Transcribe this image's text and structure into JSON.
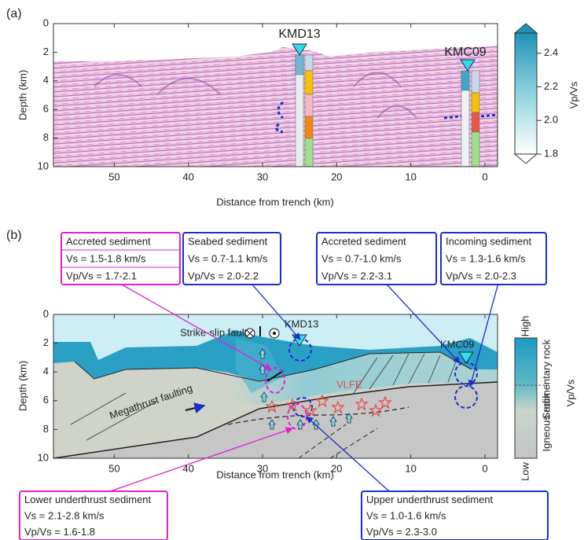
{
  "panel_a": {
    "label": "(a)",
    "xlabel": "Distance from trench (km)",
    "ylabel": "Depth (km)",
    "xlim": [
      58.2,
      -1.7
    ],
    "ylim": [
      0,
      10
    ],
    "xticks": [
      50,
      40,
      30,
      20,
      10,
      0
    ],
    "yticks": [
      0,
      2,
      4,
      6,
      8,
      10
    ],
    "sites": [
      "KMD13",
      "KMC09"
    ],
    "colorbar": {
      "label": "Vp/Vs",
      "lim": [
        1.8,
        2.52
      ],
      "ticks": [
        1.8,
        {
          "value": 2.0,
          "label": "2.0"
        },
        2.2,
        2.4
      ]
    }
  },
  "panel_b": {
    "label": "(b)",
    "xlabel": "Distance from trench (km)",
    "ylabel": "Depth (km)",
    "xlim": [
      58.2,
      -1.7
    ],
    "ylim": [
      0,
      10
    ],
    "xticks": [
      50,
      40,
      30,
      20,
      10,
      0
    ],
    "yticks": [
      0,
      2,
      4,
      6,
      8,
      10
    ],
    "sites": [
      "KMD13",
      "KMC09"
    ],
    "annotations": [
      "Strike-slip fault",
      "Megathrust faulting",
      "VLFE"
    ],
    "legend": {
      "label": "Vp/Vs",
      "high": "High",
      "low": "Low",
      "upper": "Sedimentary rock",
      "lower": "Igneous rock"
    },
    "boxes": [
      {
        "title": "Accreted sediment",
        "vs": "Vs = 1.5-1.8 km/s",
        "vpvs": "Vp/Vs = 1.7-2.1",
        "color": "#e020d0"
      },
      {
        "title": "Seabed sediment",
        "vs": "Vs = 0.7-1.1 km/s",
        "vpvs": "Vp/Vs = 2.0-2.2",
        "color": "#1a2fc8"
      },
      {
        "title": "Accreted sediment",
        "vs": "Vs = 0.7-1.0 km/s",
        "vpvs": "Vp/Vs = 2.2-3.1",
        "color": "#1a2fc8"
      },
      {
        "title": "Incoming sediment",
        "vs": "Vs = 1.3-1.6 km/s",
        "vpvs": "Vp/Vs = 2.0-2.3",
        "color": "#1a2fc8"
      },
      {
        "title": "Lower underthrust sediment",
        "vs": "Vs = 2.1-2.8 km/s",
        "vpvs": "Vp/Vs = 1.6-1.8",
        "color": "#e020d0"
      },
      {
        "title": "Upper underthrust sediment",
        "vs": "Vs = 1.0-1.6 km/s",
        "vpvs": "Vp/Vs = 2.3-3.0",
        "color": "#1a2fc8"
      }
    ]
  }
}
